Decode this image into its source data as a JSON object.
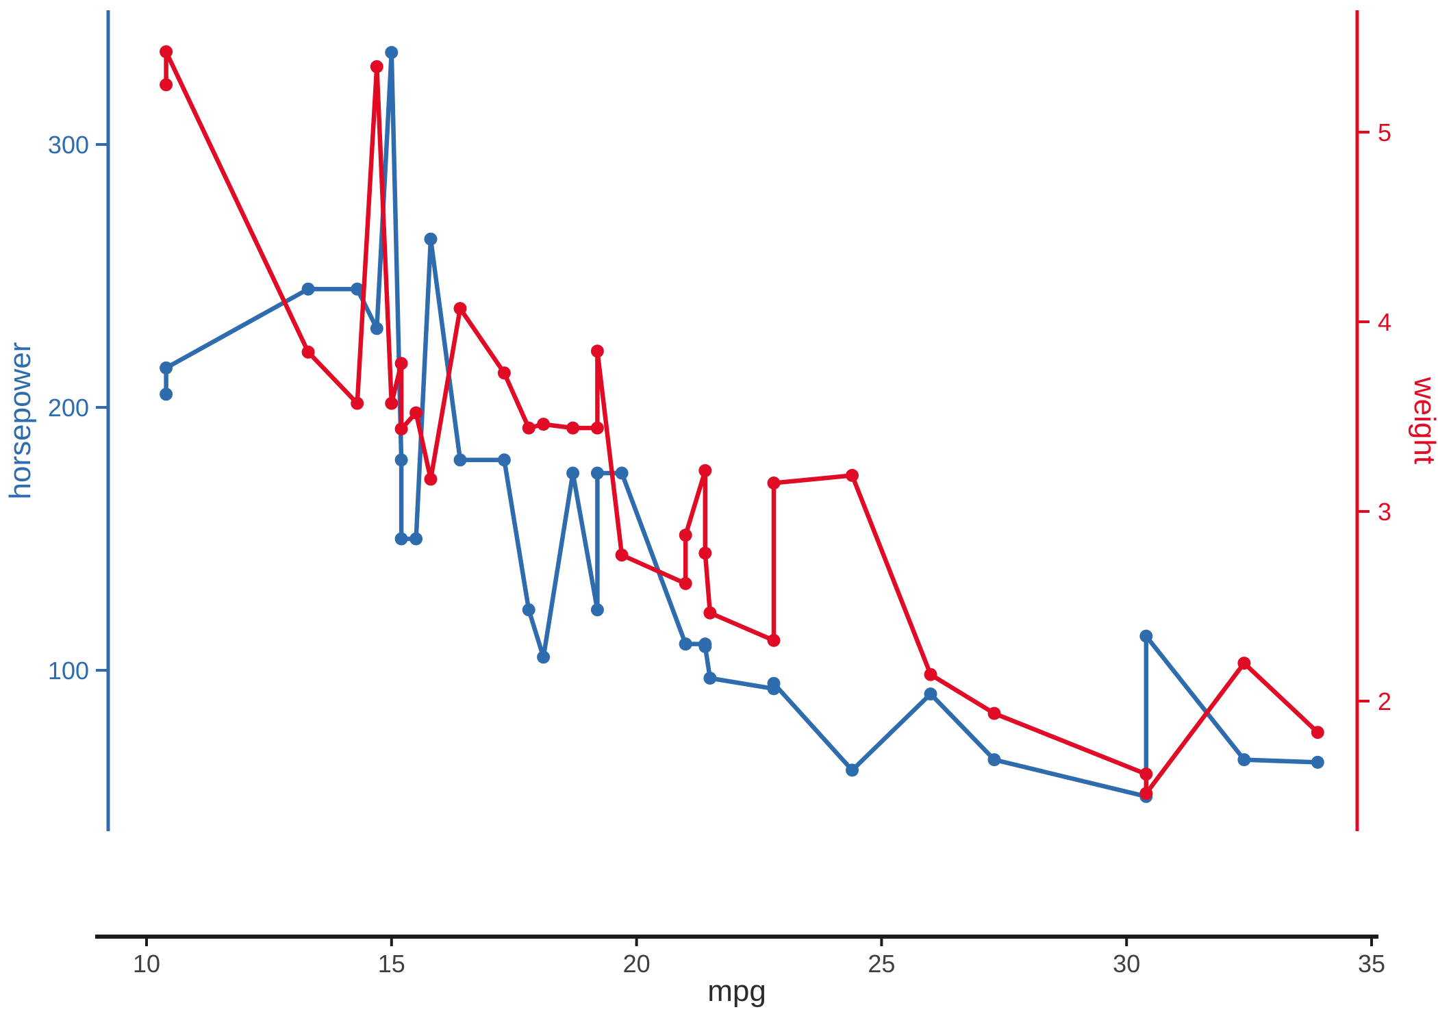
{
  "chart_data": {
    "type": "line",
    "title": "",
    "xlabel": "mpg",
    "ylabel_left": "horsepower",
    "ylabel_right": "weight",
    "grid": false,
    "legend_position": "none",
    "background": "#ffffff",
    "marker": "circle",
    "x_ticks": [
      10,
      15,
      20,
      25,
      30,
      35
    ],
    "x_domain": [
      8.95,
      35.15
    ],
    "x_axis_color": "#1b1b1b",
    "x_tick_label_color": "#404040",
    "x_title_color": "#2b2b2b",
    "left_axis": {
      "label": "horsepower",
      "color": "#2e6cae",
      "ticks": [
        100,
        200,
        300
      ],
      "domain": [
        38,
        351
      ]
    },
    "right_axis": {
      "label": "weight",
      "color": "#e00c25",
      "ticks": [
        2,
        3,
        4,
        5
      ],
      "domain": [
        1.31,
        5.64
      ]
    },
    "x_shared": [
      10.4,
      10.4,
      13.3,
      14.3,
      14.7,
      15.0,
      15.2,
      15.2,
      15.5,
      15.8,
      16.4,
      17.3,
      17.8,
      18.1,
      18.7,
      19.2,
      19.2,
      19.7,
      21.0,
      21.0,
      21.4,
      21.4,
      21.5,
      22.8,
      22.8,
      24.4,
      26.0,
      27.3,
      30.4,
      30.4,
      32.4,
      33.9
    ],
    "series": [
      {
        "name": "horsepower",
        "axis": "left",
        "color": "#2e6cae",
        "values": [
          205,
          215,
          245,
          245,
          230,
          335,
          180,
          150,
          150,
          264,
          180,
          180,
          123,
          105,
          175,
          123,
          175,
          175,
          110,
          110,
          110,
          109,
          97,
          93,
          95,
          62,
          91,
          66,
          52,
          113,
          66,
          65
        ]
      },
      {
        "name": "weight",
        "axis": "right",
        "color": "#e00c25",
        "values": [
          5.25,
          5.424,
          3.84,
          3.57,
          5.345,
          3.57,
          3.78,
          3.435,
          3.52,
          3.17,
          4.07,
          3.73,
          3.44,
          3.46,
          3.44,
          3.44,
          3.845,
          2.77,
          2.62,
          2.875,
          3.215,
          2.78,
          2.465,
          2.32,
          3.15,
          3.19,
          2.14,
          1.935,
          1.615,
          1.513,
          2.2,
          1.835
        ]
      }
    ]
  }
}
